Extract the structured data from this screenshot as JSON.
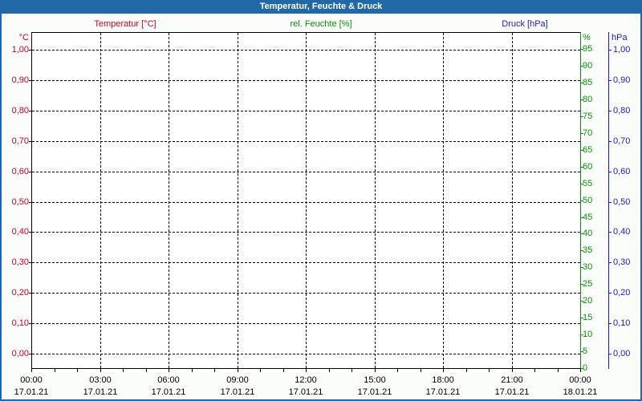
{
  "window": {
    "title": "Temperatur, Feuchte & Druck"
  },
  "colors": {
    "frame_and_header": "#2168a6",
    "background": "#fbfdfb",
    "plot_background": "#ffffff",
    "grid": "#000000",
    "temperature": "#cc0022",
    "humidity": "#089008",
    "pressure": "#1a1acc",
    "title_text": "#ffffff"
  },
  "chart_data": {
    "type": "line",
    "title": "Temperatur, Feuchte & Druck",
    "plot_empty": true,
    "grid": "dashed",
    "series": [
      {
        "name": "Temperatur [°C]",
        "unit": "°C",
        "color": "#cc0022",
        "axis": "left",
        "values": []
      },
      {
        "name": "rel. Feuchte [%]",
        "unit": "%",
        "color": "#089008",
        "axis": "right-inner",
        "values": []
      },
      {
        "name": "Druck [hPa]",
        "unit": "hPa",
        "color": "#1a1acc",
        "axis": "right-outer",
        "values": []
      }
    ],
    "axes": {
      "temperature": {
        "title": "Temperatur [°C]",
        "unit": "°C",
        "range": [
          0.0,
          1.0
        ],
        "ticks": [
          "1,00",
          "0,90",
          "0,80",
          "0,70",
          "0,60",
          "0,50",
          "0,40",
          "0,30",
          "0,20",
          "0,10",
          "0,00"
        ]
      },
      "humidity": {
        "title": "rel. Feuchte [%]",
        "unit": "%",
        "range": [
          0,
          100
        ],
        "ticks": [
          "95",
          "90",
          "85",
          "80",
          "75",
          "70",
          "65",
          "60",
          "55",
          "50",
          "45",
          "40",
          "35",
          "30",
          "25",
          "20",
          "15",
          "10",
          "5",
          "0"
        ]
      },
      "pressure": {
        "title": "Druck [hPa]",
        "unit": "hPa",
        "range": [
          0.0,
          1.0
        ],
        "ticks": [
          "1,00",
          "0,90",
          "0,80",
          "0,70",
          "0,60",
          "0,50",
          "0,40",
          "0,30",
          "0,20",
          "0,10",
          "0,00"
        ]
      },
      "x": {
        "hours_span": 24,
        "major_every_hours": 3,
        "minor_every_hours": 1,
        "major_ticks": [
          {
            "time": "00:00",
            "date": "17.01.21"
          },
          {
            "time": "03:00",
            "date": "17.01.21"
          },
          {
            "time": "06:00",
            "date": "17.01.21"
          },
          {
            "time": "09:00",
            "date": "17.01.21"
          },
          {
            "time": "12:00",
            "date": "17.01.21"
          },
          {
            "time": "15:00",
            "date": "17.01.21"
          },
          {
            "time": "18:00",
            "date": "17.01.21"
          },
          {
            "time": "21:00",
            "date": "17.01.21"
          },
          {
            "time": "00:00",
            "date": "18.01.21"
          }
        ]
      }
    }
  }
}
